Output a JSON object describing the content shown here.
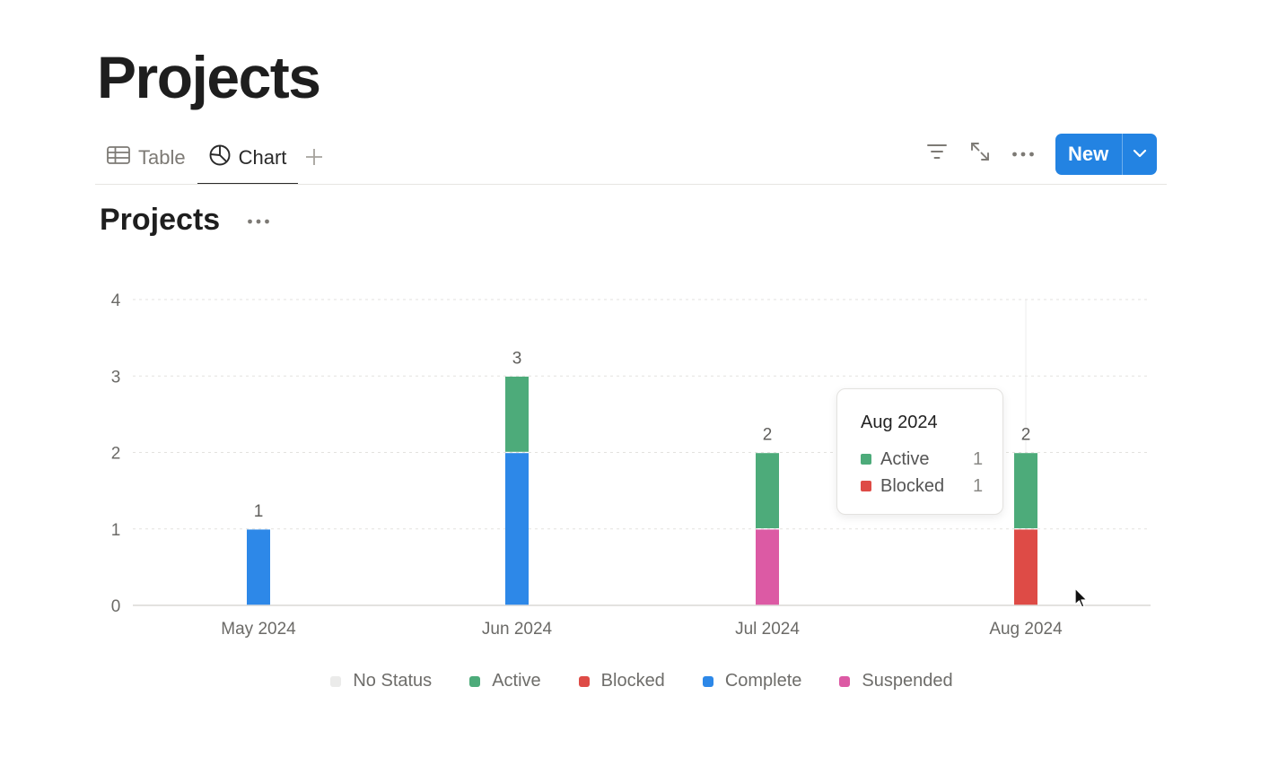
{
  "page": {
    "title": "Projects"
  },
  "tabs": [
    {
      "label": "Table",
      "icon": "table-icon",
      "active": false
    },
    {
      "label": "Chart",
      "icon": "chart-pie-icon",
      "active": true
    }
  ],
  "toolbar": {
    "new_label": "New"
  },
  "chart_view": {
    "title": "Projects"
  },
  "colors": {
    "no_status": "#ebebea",
    "active": "#4dab7a",
    "blocked": "#de4b46",
    "complete": "#2d88e8",
    "suspended": "#dc5aa4",
    "accent": "#2383e2"
  },
  "chart_data": {
    "type": "bar",
    "stacked": true,
    "categories": [
      "May 2024",
      "Jun 2024",
      "Jul 2024",
      "Aug 2024"
    ],
    "series": [
      {
        "name": "No Status",
        "color": "#ebebea",
        "values": [
          0,
          0,
          0,
          0
        ]
      },
      {
        "name": "Complete",
        "color": "#2d88e8",
        "values": [
          1,
          2,
          0,
          0
        ]
      },
      {
        "name": "Suspended",
        "color": "#dc5aa4",
        "values": [
          0,
          0,
          1,
          0
        ]
      },
      {
        "name": "Blocked",
        "color": "#de4b46",
        "values": [
          0,
          0,
          0,
          1
        ]
      },
      {
        "name": "Active",
        "color": "#4dab7a",
        "values": [
          0,
          1,
          1,
          1
        ]
      }
    ],
    "totals": [
      1,
      3,
      2,
      2
    ],
    "yticks": [
      0,
      1,
      2,
      3,
      4
    ],
    "ylim": [
      0,
      4
    ],
    "grid": true,
    "legend_position": "bottom"
  },
  "legend": [
    {
      "label": "No Status",
      "color": "#ebebea"
    },
    {
      "label": "Active",
      "color": "#4dab7a"
    },
    {
      "label": "Blocked",
      "color": "#de4b46"
    },
    {
      "label": "Complete",
      "color": "#2d88e8"
    },
    {
      "label": "Suspended",
      "color": "#dc5aa4"
    }
  ],
  "tooltip": {
    "title": "Aug 2024",
    "rows": [
      {
        "label": "Active",
        "value": "1",
        "color": "#4dab7a"
      },
      {
        "label": "Blocked",
        "value": "1",
        "color": "#de4b46"
      }
    ]
  }
}
